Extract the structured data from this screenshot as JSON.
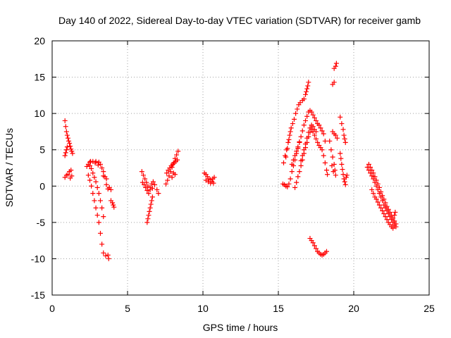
{
  "chart_data": {
    "type": "scatter",
    "title": "Day 140 of 2022, Sidereal Day-to-day VTEC variation (SDTVAR) for receiver gamb",
    "xlabel": "GPS time / hours",
    "ylabel": "SDTVAR / TECUs",
    "xlim": [
      0,
      25
    ],
    "ylim": [
      -15,
      20
    ],
    "xticks": [
      0,
      5,
      10,
      15,
      20,
      25
    ],
    "yticks": [
      -15,
      -10,
      -5,
      0,
      5,
      10,
      15,
      20
    ],
    "grid": true,
    "marker": "+",
    "color": "#ff0000",
    "series": [
      {
        "name": "gamb",
        "points": [
          [
            0.85,
            9.0
          ],
          [
            0.9,
            8.2
          ],
          [
            0.95,
            7.5
          ],
          [
            1.0,
            7.0
          ],
          [
            1.05,
            6.6
          ],
          [
            1.1,
            6.2
          ],
          [
            1.15,
            5.9
          ],
          [
            1.2,
            5.5
          ],
          [
            1.25,
            5.1
          ],
          [
            1.3,
            4.8
          ],
          [
            1.35,
            4.5
          ],
          [
            0.85,
            4.2
          ],
          [
            0.9,
            4.6
          ],
          [
            0.95,
            5.0
          ],
          [
            1.0,
            5.4
          ],
          [
            0.85,
            1.2
          ],
          [
            0.95,
            1.5
          ],
          [
            1.05,
            1.6
          ],
          [
            1.15,
            2.0
          ],
          [
            1.25,
            2.2
          ],
          [
            1.3,
            1.4
          ],
          [
            1.2,
            1.1
          ],
          [
            2.3,
            2.7
          ],
          [
            2.4,
            1.5
          ],
          [
            2.5,
            0.8
          ],
          [
            2.6,
            0.0
          ],
          [
            2.7,
            -1.0
          ],
          [
            2.8,
            -2.0
          ],
          [
            2.9,
            -3.0
          ],
          [
            3.0,
            -4.0
          ],
          [
            3.1,
            -5.0
          ],
          [
            3.2,
            -6.5
          ],
          [
            3.3,
            -8.0
          ],
          [
            3.4,
            -9.2
          ],
          [
            3.55,
            -9.6
          ],
          [
            3.7,
            -9.5
          ],
          [
            3.75,
            -10.0
          ],
          [
            2.5,
            2.8
          ],
          [
            2.6,
            2.4
          ],
          [
            2.7,
            1.8
          ],
          [
            2.8,
            1.2
          ],
          [
            2.9,
            0.6
          ],
          [
            3.0,
            -0.2
          ],
          [
            3.1,
            -1.0
          ],
          [
            3.2,
            -2.0
          ],
          [
            3.3,
            -3.0
          ],
          [
            3.4,
            -4.2
          ],
          [
            2.5,
            3.3
          ],
          [
            2.7,
            3.4
          ],
          [
            2.9,
            3.4
          ],
          [
            3.1,
            3.3
          ],
          [
            3.2,
            3.0
          ],
          [
            3.3,
            2.5
          ],
          [
            3.4,
            2.0
          ],
          [
            3.5,
            1.3
          ],
          [
            3.6,
            0.2
          ],
          [
            3.7,
            -0.4
          ],
          [
            2.4,
            3.0
          ],
          [
            2.55,
            3.4
          ],
          [
            2.85,
            3.2
          ],
          [
            3.05,
            2.9
          ],
          [
            3.4,
            1.4
          ],
          [
            3.6,
            1.0
          ],
          [
            3.8,
            -0.2
          ],
          [
            3.9,
            -0.5
          ],
          [
            3.9,
            -2.0
          ],
          [
            4.0,
            -2.3
          ],
          [
            4.05,
            -2.6
          ],
          [
            4.1,
            -2.9
          ],
          [
            5.95,
            2.0
          ],
          [
            6.05,
            1.5
          ],
          [
            6.15,
            1.0
          ],
          [
            6.25,
            0.5
          ],
          [
            6.35,
            0.0
          ],
          [
            6.5,
            -0.5
          ],
          [
            6.65,
            -0.3
          ],
          [
            6.8,
            0.2
          ],
          [
            6.95,
            -0.5
          ],
          [
            7.05,
            -1.0
          ],
          [
            6.0,
            0.5
          ],
          [
            6.1,
            0.2
          ],
          [
            6.2,
            -0.2
          ],
          [
            6.3,
            -0.6
          ],
          [
            6.4,
            -1.0
          ],
          [
            6.5,
            -0.2
          ],
          [
            6.6,
            0.3
          ],
          [
            6.7,
            0.6
          ],
          [
            6.3,
            -5.0
          ],
          [
            6.35,
            -4.5
          ],
          [
            6.4,
            -4.0
          ],
          [
            6.45,
            -3.5
          ],
          [
            6.5,
            -3.0
          ],
          [
            6.55,
            -2.5
          ],
          [
            6.6,
            -2.0
          ],
          [
            6.65,
            -1.5
          ],
          [
            7.55,
            0.3
          ],
          [
            7.65,
            0.8
          ],
          [
            7.75,
            1.4
          ],
          [
            7.85,
            2.0
          ],
          [
            7.95,
            2.6
          ],
          [
            8.05,
            3.2
          ],
          [
            8.15,
            3.8
          ],
          [
            8.25,
            4.3
          ],
          [
            8.35,
            4.8
          ],
          [
            7.6,
            1.8
          ],
          [
            7.7,
            2.2
          ],
          [
            7.8,
            2.5
          ],
          [
            7.9,
            2.8
          ],
          [
            8.0,
            3.0
          ],
          [
            8.1,
            3.2
          ],
          [
            8.2,
            3.4
          ],
          [
            8.3,
            3.6
          ],
          [
            8.05,
            1.8
          ],
          [
            8.15,
            1.6
          ],
          [
            7.95,
            1.2
          ],
          [
            10.1,
            1.8
          ],
          [
            10.2,
            1.6
          ],
          [
            10.3,
            1.3
          ],
          [
            10.4,
            1.0
          ],
          [
            10.5,
            0.9
          ],
          [
            10.6,
            0.6
          ],
          [
            10.7,
            0.4
          ],
          [
            10.2,
            0.8
          ],
          [
            10.35,
            0.6
          ],
          [
            10.5,
            0.4
          ],
          [
            10.65,
            1.0
          ],
          [
            10.75,
            1.2
          ],
          [
            15.35,
            3.2
          ],
          [
            15.45,
            4.2
          ],
          [
            15.55,
            5.0
          ],
          [
            15.65,
            6.0
          ],
          [
            15.75,
            7.0
          ],
          [
            15.85,
            8.0
          ],
          [
            15.95,
            8.6
          ],
          [
            16.05,
            9.2
          ],
          [
            16.15,
            10.0
          ],
          [
            16.25,
            10.6
          ],
          [
            16.35,
            11.2
          ],
          [
            16.45,
            11.5
          ],
          [
            16.6,
            11.8
          ],
          [
            16.7,
            12.0
          ],
          [
            16.8,
            12.6
          ],
          [
            16.85,
            13.0
          ],
          [
            16.9,
            13.4
          ],
          [
            16.95,
            13.8
          ],
          [
            17.0,
            14.3
          ],
          [
            15.3,
            0.3
          ],
          [
            15.4,
            0.2
          ],
          [
            15.5,
            0.0
          ],
          [
            15.6,
            -0.1
          ],
          [
            15.7,
            0.3
          ],
          [
            15.8,
            1.0
          ],
          [
            15.9,
            2.0
          ],
          [
            16.0,
            2.8
          ],
          [
            16.1,
            3.6
          ],
          [
            16.2,
            4.5
          ],
          [
            16.3,
            5.2
          ],
          [
            16.4,
            6.0
          ],
          [
            16.5,
            6.8
          ],
          [
            16.6,
            7.6
          ],
          [
            16.7,
            8.4
          ],
          [
            16.8,
            9.0
          ],
          [
            16.9,
            9.6
          ],
          [
            17.0,
            10.2
          ],
          [
            17.1,
            10.4
          ],
          [
            17.2,
            10.2
          ],
          [
            17.3,
            9.8
          ],
          [
            17.4,
            9.4
          ],
          [
            17.5,
            9.0
          ],
          [
            17.6,
            8.6
          ],
          [
            17.7,
            8.4
          ],
          [
            17.8,
            8.0
          ],
          [
            17.9,
            7.6
          ],
          [
            18.0,
            7.2
          ],
          [
            18.1,
            6.2
          ],
          [
            16.1,
            -0.2
          ],
          [
            16.2,
            0.5
          ],
          [
            16.3,
            1.3
          ],
          [
            16.4,
            2.0
          ],
          [
            16.5,
            2.8
          ],
          [
            16.6,
            3.6
          ],
          [
            16.7,
            4.5
          ],
          [
            16.8,
            5.3
          ],
          [
            16.9,
            6.0
          ],
          [
            17.0,
            6.8
          ],
          [
            17.1,
            7.4
          ],
          [
            17.2,
            7.8
          ],
          [
            17.3,
            7.5
          ],
          [
            17.4,
            7.0
          ],
          [
            17.5,
            6.5
          ],
          [
            17.6,
            6.0
          ],
          [
            17.7,
            5.6
          ],
          [
            17.8,
            5.3
          ],
          [
            17.9,
            5.0
          ],
          [
            18.0,
            4.2
          ],
          [
            18.1,
            3.2
          ],
          [
            18.2,
            2.2
          ],
          [
            18.25,
            1.6
          ],
          [
            16.5,
            3.5
          ],
          [
            16.6,
            4.2
          ],
          [
            16.7,
            5.0
          ],
          [
            16.8,
            5.8
          ],
          [
            16.9,
            6.6
          ],
          [
            17.0,
            7.4
          ],
          [
            17.1,
            8.0
          ],
          [
            17.2,
            8.4
          ],
          [
            17.3,
            8.2
          ],
          [
            17.4,
            7.8
          ],
          [
            17.5,
            7.5
          ],
          [
            15.5,
            4.0
          ],
          [
            15.6,
            5.2
          ],
          [
            15.7,
            6.4
          ],
          [
            15.8,
            7.5
          ],
          [
            15.9,
            3.0
          ],
          [
            16.0,
            3.6
          ],
          [
            16.1,
            4.2
          ],
          [
            16.2,
            4.8
          ],
          [
            16.3,
            5.4
          ],
          [
            16.4,
            6.1
          ],
          [
            17.1,
            -7.2
          ],
          [
            17.2,
            -7.5
          ],
          [
            17.3,
            -7.8
          ],
          [
            17.4,
            -8.2
          ],
          [
            17.5,
            -8.6
          ],
          [
            17.6,
            -9.0
          ],
          [
            17.7,
            -9.2
          ],
          [
            17.8,
            -9.4
          ],
          [
            17.9,
            -9.5
          ],
          [
            18.0,
            -9.4
          ],
          [
            18.1,
            -9.2
          ],
          [
            18.2,
            -9.0
          ],
          [
            18.4,
            6.2
          ],
          [
            18.5,
            5.0
          ],
          [
            18.6,
            4.0
          ],
          [
            18.7,
            3.0
          ],
          [
            18.75,
            2.2
          ],
          [
            18.8,
            1.5
          ],
          [
            18.55,
            2.8
          ],
          [
            18.65,
            2.0
          ],
          [
            18.6,
            7.5
          ],
          [
            18.7,
            7.2
          ],
          [
            18.8,
            7.0
          ],
          [
            18.9,
            6.6
          ],
          [
            18.6,
            14.0
          ],
          [
            18.7,
            14.3
          ],
          [
            18.7,
            16.2
          ],
          [
            18.8,
            16.5
          ],
          [
            18.85,
            16.9
          ],
          [
            19.1,
            9.5
          ],
          [
            19.2,
            8.6
          ],
          [
            19.3,
            7.8
          ],
          [
            19.35,
            7.0
          ],
          [
            19.4,
            6.5
          ],
          [
            19.45,
            6.0
          ],
          [
            19.1,
            4.5
          ],
          [
            19.15,
            3.8
          ],
          [
            19.2,
            3.0
          ],
          [
            19.25,
            2.3
          ],
          [
            19.3,
            1.6
          ],
          [
            19.35,
            1.0
          ],
          [
            19.4,
            0.6
          ],
          [
            19.45,
            0.2
          ],
          [
            19.5,
            1.2
          ],
          [
            19.55,
            1.5
          ],
          [
            20.9,
            2.6
          ],
          [
            21.0,
            2.2
          ],
          [
            21.1,
            1.8
          ],
          [
            21.2,
            1.4
          ],
          [
            21.3,
            1.0
          ],
          [
            21.4,
            0.5
          ],
          [
            21.5,
            0.0
          ],
          [
            21.6,
            -0.5
          ],
          [
            21.7,
            -1.0
          ],
          [
            21.8,
            -1.5
          ],
          [
            21.9,
            -2.0
          ],
          [
            22.0,
            -2.6
          ],
          [
            22.1,
            -3.0
          ],
          [
            22.2,
            -3.4
          ],
          [
            22.3,
            -3.8
          ],
          [
            22.4,
            -4.2
          ],
          [
            22.5,
            -4.6
          ],
          [
            22.6,
            -5.0
          ],
          [
            22.7,
            -5.4
          ],
          [
            22.8,
            -5.6
          ],
          [
            21.0,
            3.0
          ],
          [
            21.1,
            2.6
          ],
          [
            21.2,
            2.2
          ],
          [
            21.3,
            1.8
          ],
          [
            21.4,
            1.3
          ],
          [
            21.5,
            0.8
          ],
          [
            21.6,
            0.3
          ],
          [
            21.7,
            -0.2
          ],
          [
            21.8,
            -0.8
          ],
          [
            21.9,
            -1.3
          ],
          [
            22.0,
            -1.8
          ],
          [
            22.1,
            -2.3
          ],
          [
            22.2,
            -2.8
          ],
          [
            22.3,
            -3.2
          ],
          [
            22.4,
            -3.6
          ],
          [
            22.5,
            -4.0
          ],
          [
            22.6,
            -4.4
          ],
          [
            22.7,
            -4.8
          ],
          [
            22.8,
            -5.2
          ],
          [
            21.2,
            -0.5
          ],
          [
            21.3,
            -1.0
          ],
          [
            21.4,
            -1.5
          ],
          [
            21.5,
            -1.8
          ],
          [
            21.6,
            -2.2
          ],
          [
            21.7,
            -2.6
          ],
          [
            21.8,
            -3.0
          ],
          [
            21.9,
            -3.4
          ],
          [
            22.0,
            -3.8
          ],
          [
            22.1,
            -4.2
          ],
          [
            22.2,
            -4.6
          ],
          [
            22.3,
            -5.0
          ],
          [
            22.4,
            -5.3
          ],
          [
            22.5,
            -5.6
          ],
          [
            22.6,
            -5.8
          ],
          [
            22.7,
            -4.0
          ],
          [
            22.75,
            -3.6
          ]
        ]
      }
    ]
  }
}
